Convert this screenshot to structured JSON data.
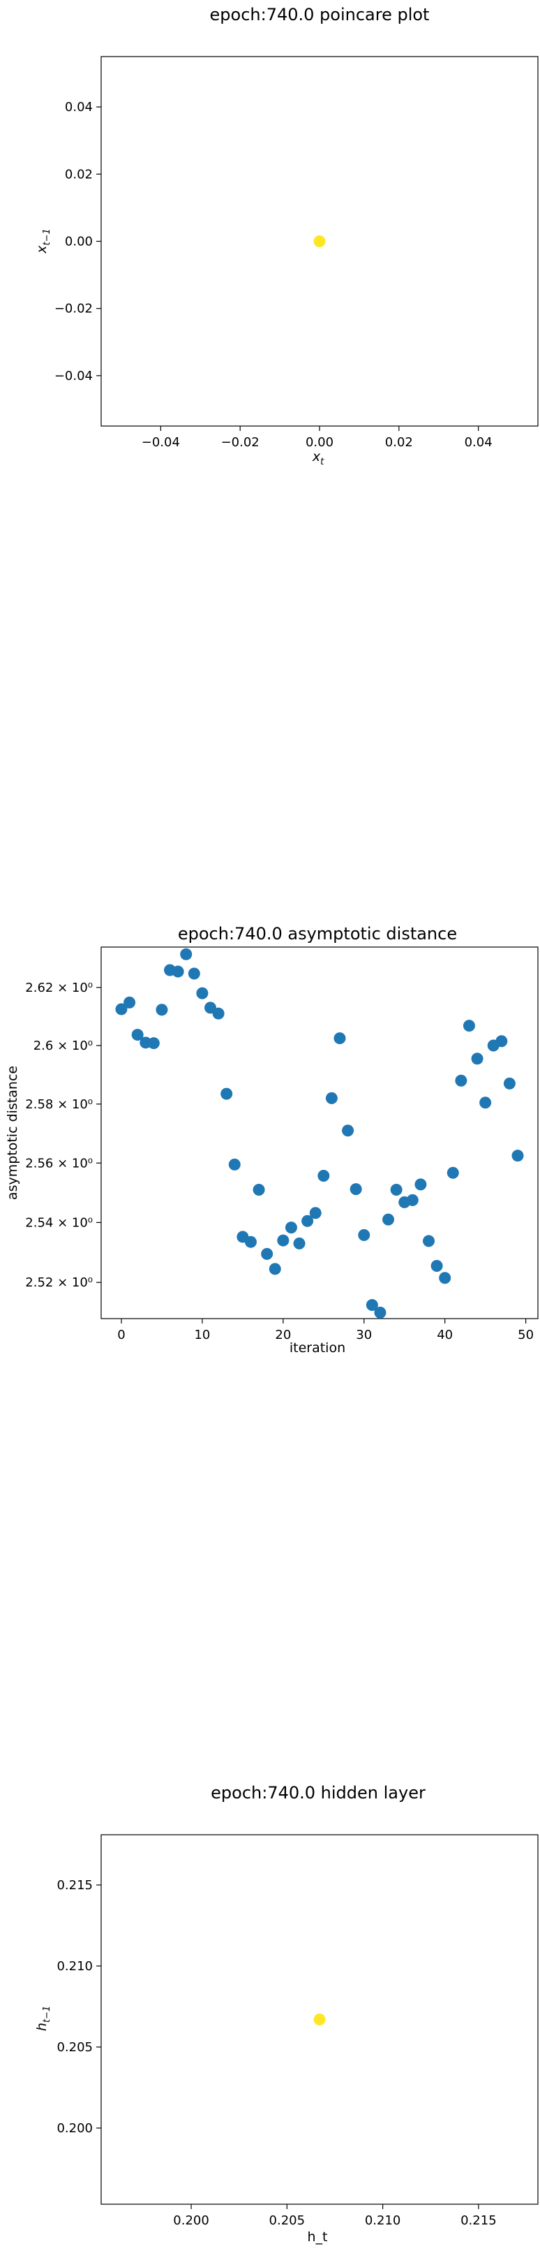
{
  "chart_data": [
    {
      "type": "scatter",
      "title": "epoch:740.0 poincare plot",
      "xlabel": "x_t",
      "ylabel": "x_{t-1}",
      "xlim": [
        -0.055,
        0.055
      ],
      "ylim": [
        -0.055,
        0.055
      ],
      "x_ticks": [
        "−0.04",
        "−0.02",
        "0.00",
        "0.02",
        "0.04"
      ],
      "x_tick_values": [
        -0.04,
        -0.02,
        0,
        0.02,
        0.04
      ],
      "y_ticks": [
        "0.04",
        "0.02",
        "0.00",
        "−0.02",
        "−0.04"
      ],
      "y_tick_values": [
        0.04,
        0.02,
        0,
        -0.02,
        -0.04
      ],
      "grid": false,
      "color": "#fde725",
      "points": [
        {
          "x": 0.0,
          "y": 0.0
        }
      ]
    },
    {
      "type": "scatter",
      "title": "epoch:740.0 asymptotic distance",
      "xlabel": "iteration",
      "ylabel": "asymptotic distance",
      "scale_y": "log",
      "xlim": [
        -2.5,
        51.5
      ],
      "ylim": [
        2.508,
        2.634
      ],
      "x_ticks": [
        "0",
        "10",
        "20",
        "30",
        "40",
        "50"
      ],
      "x_tick_values": [
        0,
        10,
        20,
        30,
        40,
        50
      ],
      "y_ticks": [
        "2.62 × 10⁰",
        "2.6 × 10⁰",
        "2.58 × 10⁰",
        "2.56 × 10⁰",
        "2.54 × 10⁰",
        "2.52 × 10⁰"
      ],
      "y_tick_values": [
        2.62,
        2.6,
        2.58,
        2.56,
        2.54,
        2.52
      ],
      "grid": false,
      "color": "#1f77b4",
      "x": [
        0,
        1,
        2,
        3,
        4,
        5,
        6,
        7,
        8,
        9,
        10,
        11,
        12,
        13,
        14,
        15,
        16,
        17,
        18,
        19,
        20,
        21,
        22,
        23,
        24,
        25,
        26,
        27,
        28,
        29,
        30,
        31,
        32,
        33,
        34,
        35,
        36,
        37,
        38,
        39,
        40,
        41,
        42,
        43,
        44,
        45,
        46,
        47,
        48,
        49
      ],
      "y": [
        2.6125,
        2.6148,
        2.6037,
        2.601,
        2.6008,
        2.6123,
        2.626,
        2.6255,
        2.6315,
        2.6248,
        2.618,
        2.613,
        2.611,
        2.5835,
        2.5595,
        2.5352,
        2.5335,
        2.551,
        2.5295,
        2.5245,
        2.534,
        2.5383,
        2.533,
        2.5405,
        2.5432,
        2.5557,
        2.582,
        2.6025,
        2.571,
        2.5512,
        2.5358,
        2.5125,
        2.51,
        2.541,
        2.551,
        2.5468,
        2.5475,
        2.5528,
        2.5338,
        2.5255,
        2.5215,
        2.5567,
        2.588,
        2.6068,
        2.5955,
        2.5805,
        2.6,
        2.6015,
        2.587,
        2.5625
      ]
    },
    {
      "type": "scatter",
      "title": "epoch:740.0 hidden layer",
      "xlabel": "h_t",
      "ylabel": "h_{t-1}",
      "xlim": [
        0.1953,
        0.2181
      ],
      "ylim": [
        0.1953,
        0.2181
      ],
      "x_ticks": [
        "0.200",
        "0.205",
        "0.210",
        "0.215"
      ],
      "x_tick_values": [
        0.2,
        0.205,
        0.21,
        0.215
      ],
      "y_ticks": [
        "0.215",
        "0.210",
        "0.205",
        "0.200"
      ],
      "y_tick_values": [
        0.215,
        0.21,
        0.205,
        0.2
      ],
      "grid": false,
      "color": "#fde725",
      "points": [
        {
          "x": 0.2067,
          "y": 0.2067
        }
      ]
    }
  ]
}
